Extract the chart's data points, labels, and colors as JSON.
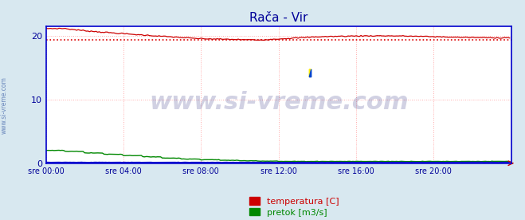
{
  "title": "Rača - Vir",
  "title_color": "#000099",
  "title_fontsize": 11,
  "bg_color": "#d8e8f0",
  "plot_bg_color": "#ffffff",
  "xlim": [
    0,
    288
  ],
  "ylim": [
    0,
    21.5
  ],
  "yticks": [
    0,
    10,
    20
  ],
  "xtick_positions": [
    0,
    48,
    96,
    144,
    192,
    240
  ],
  "xtick_labels": [
    "sre 00:00",
    "sre 04:00",
    "sre 08:00",
    "sre 12:00",
    "sre 16:00",
    "sre 20:00"
  ],
  "grid_color": "#ffaaaa",
  "grid_linestyle": ":",
  "tick_color": "#000099",
  "tick_fontsize": 7,
  "border_color": "#0000cc",
  "watermark_text": "www.si-vreme.com",
  "watermark_color": "#000066",
  "watermark_alpha": 0.18,
  "watermark_fontsize": 22,
  "side_text": "www.si-vreme.com",
  "side_color": "#4466aa",
  "side_fontsize": 5.5,
  "temp_color": "#cc0000",
  "flow_color": "#008800",
  "level_color": "#0000cc",
  "avg_line_color": "#dd0000",
  "avg_line_style": ":",
  "avg_line_value": 19.3,
  "legend_labels": [
    "temperatura [C]",
    "pretok [m3/s]"
  ],
  "legend_colors": [
    "#cc0000",
    "#008800"
  ],
  "legend_fontsize": 8
}
